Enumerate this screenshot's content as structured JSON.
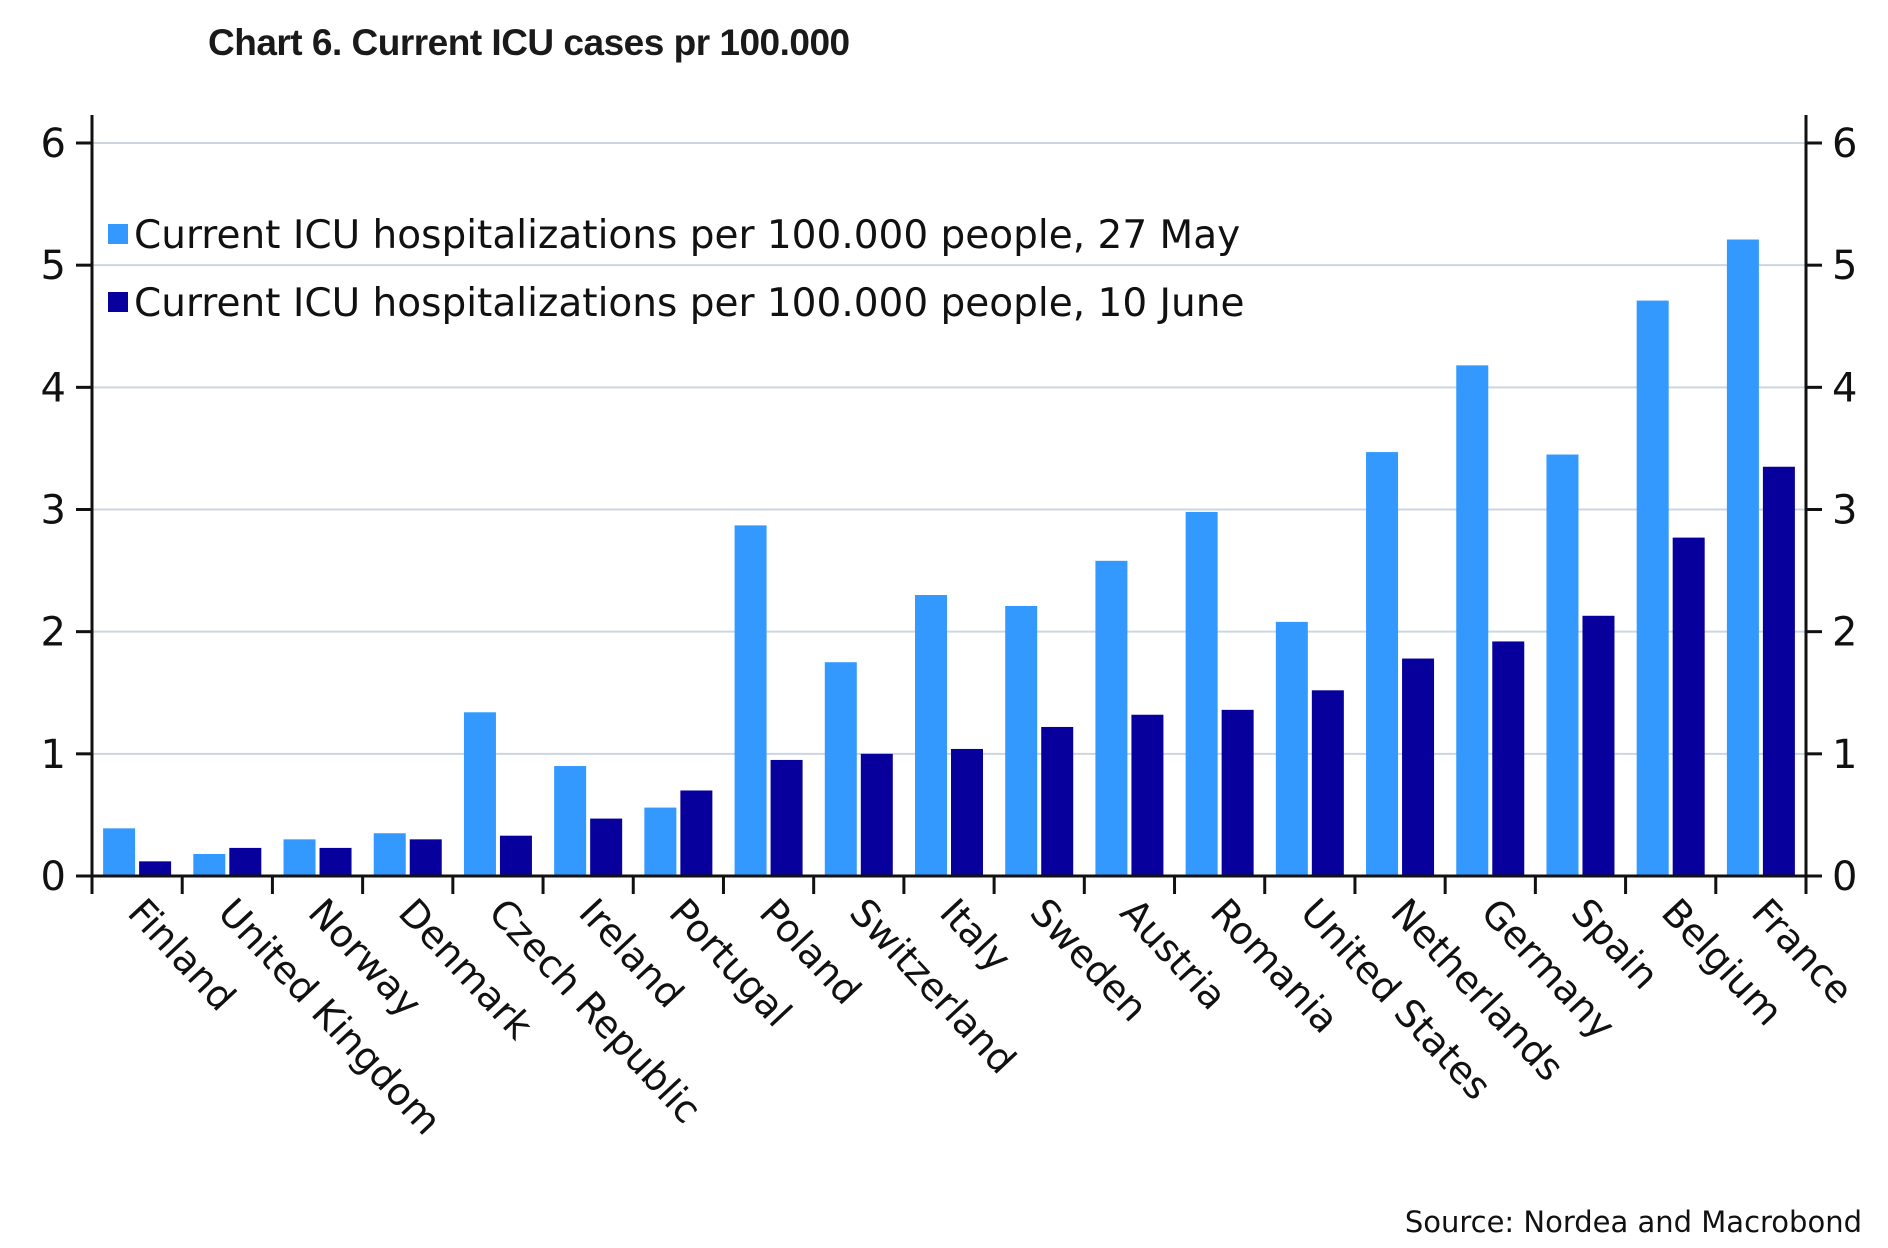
{
  "chart_data": {
    "type": "bar",
    "title": "Chart 6. Current ICU cases pr 100.000",
    "xlabel": "",
    "ylabel": "",
    "ylim": [
      0,
      6
    ],
    "yticks": [
      "0",
      "1",
      "2",
      "3",
      "4",
      "5",
      "6"
    ],
    "grid": true,
    "dual_y_axis": true,
    "legend_position": "top-left",
    "categories": [
      "Finland",
      "United Kingdom",
      "Norway",
      "Denmark",
      "Czech Republic",
      "Ireland",
      "Portugal",
      "Poland",
      "Switzerland",
      "Italy",
      "Sweden",
      "Austria",
      "Romania",
      "United States",
      "Netherlands",
      "Germany",
      "Spain",
      "Belgium",
      "France"
    ],
    "series": [
      {
        "name": "Current ICU hospitalizations per 100.000 people, 27 May",
        "color": "#3399ff",
        "values": [
          0.39,
          0.18,
          0.3,
          0.35,
          1.34,
          0.9,
          0.56,
          2.87,
          1.75,
          2.3,
          2.21,
          2.58,
          2.98,
          2.08,
          3.47,
          4.18,
          3.45,
          4.71,
          5.21
        ]
      },
      {
        "name": "Current ICU hospitalizations per 100.000 people, 10 June",
        "color": "#08009c",
        "values": [
          0.12,
          0.23,
          0.23,
          0.3,
          0.33,
          0.47,
          0.7,
          0.95,
          1.0,
          1.04,
          1.22,
          1.32,
          1.36,
          1.52,
          1.78,
          1.92,
          2.13,
          2.77,
          3.35
        ]
      }
    ],
    "source": "Source: Nordea and Macrobond"
  },
  "colors": {
    "gridline": "#ccd6e0",
    "axis": "#111111"
  }
}
